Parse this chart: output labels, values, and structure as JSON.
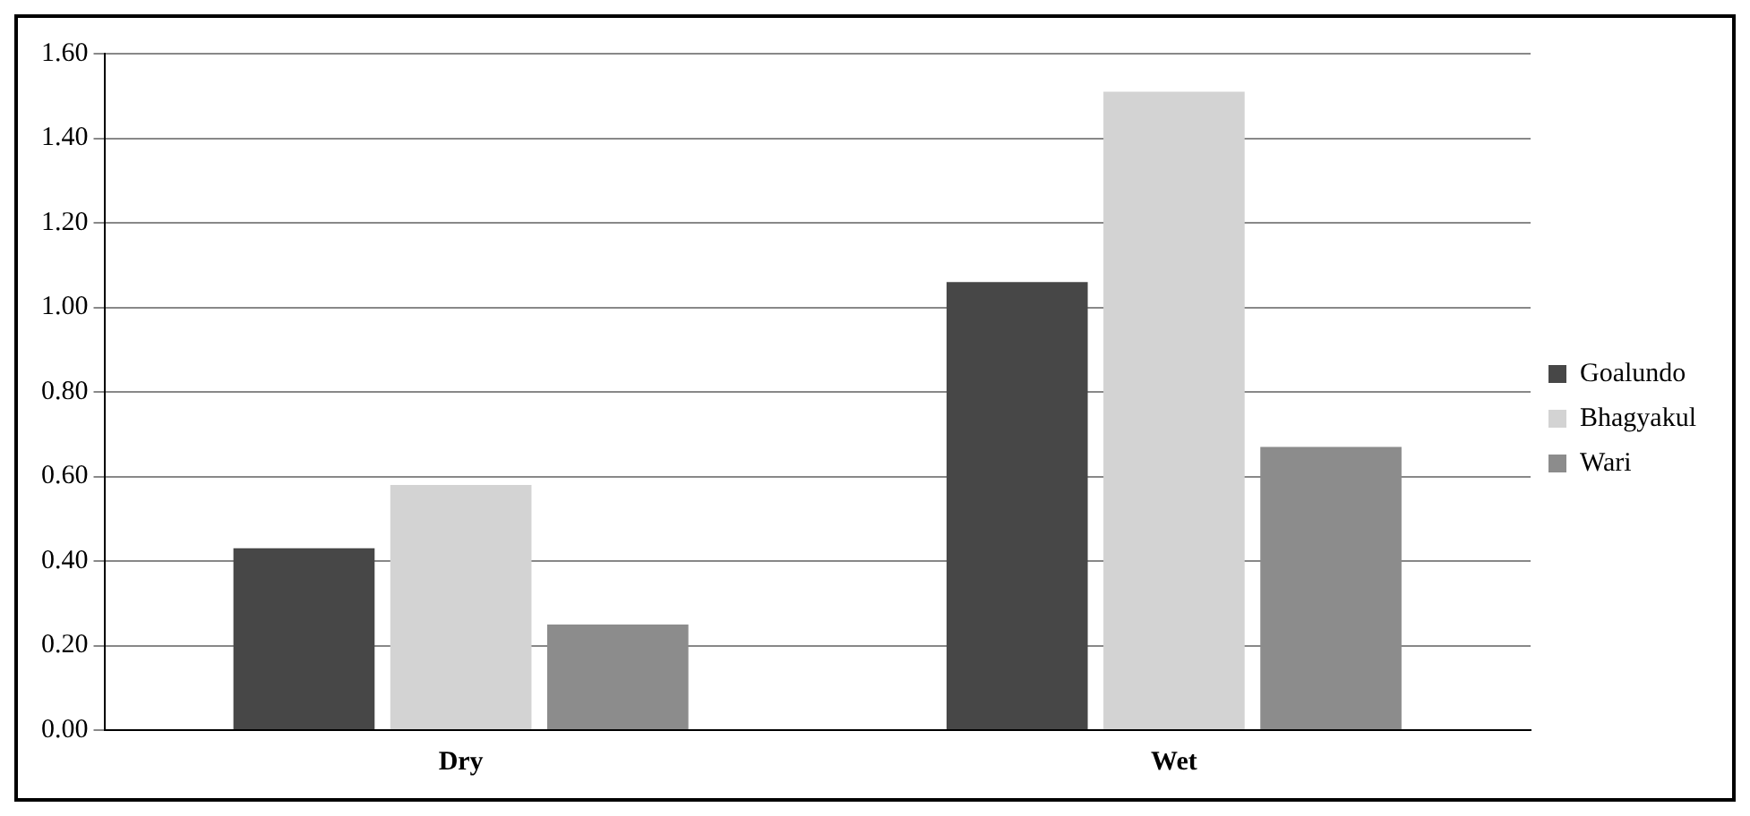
{
  "chart_data": {
    "type": "bar",
    "categories": [
      "Dry",
      "Wet"
    ],
    "series": [
      {
        "name": "Goalundo",
        "color": "#474747",
        "values": [
          0.43,
          1.06
        ]
      },
      {
        "name": "Bhagyakul",
        "color": "#d3d3d3",
        "values": [
          0.58,
          1.51
        ]
      },
      {
        "name": "Wari",
        "color": "#8c8c8c",
        "values": [
          0.25,
          0.67
        ]
      }
    ],
    "ylim": [
      0,
      1.6
    ],
    "yticks": [
      {
        "value": 0,
        "label": "0.00"
      },
      {
        "value": 0.2,
        "label": "0.20"
      },
      {
        "value": 0.4,
        "label": "0.40"
      },
      {
        "value": 0.6,
        "label": "0.60"
      },
      {
        "value": 0.8,
        "label": "0.80"
      },
      {
        "value": 1.0,
        "label": "1.00"
      },
      {
        "value": 1.2,
        "label": "1.20"
      },
      {
        "value": 1.4,
        "label": "1.40"
      },
      {
        "value": 1.6,
        "label": "1.60"
      }
    ],
    "grid": "y",
    "legend": "right"
  }
}
